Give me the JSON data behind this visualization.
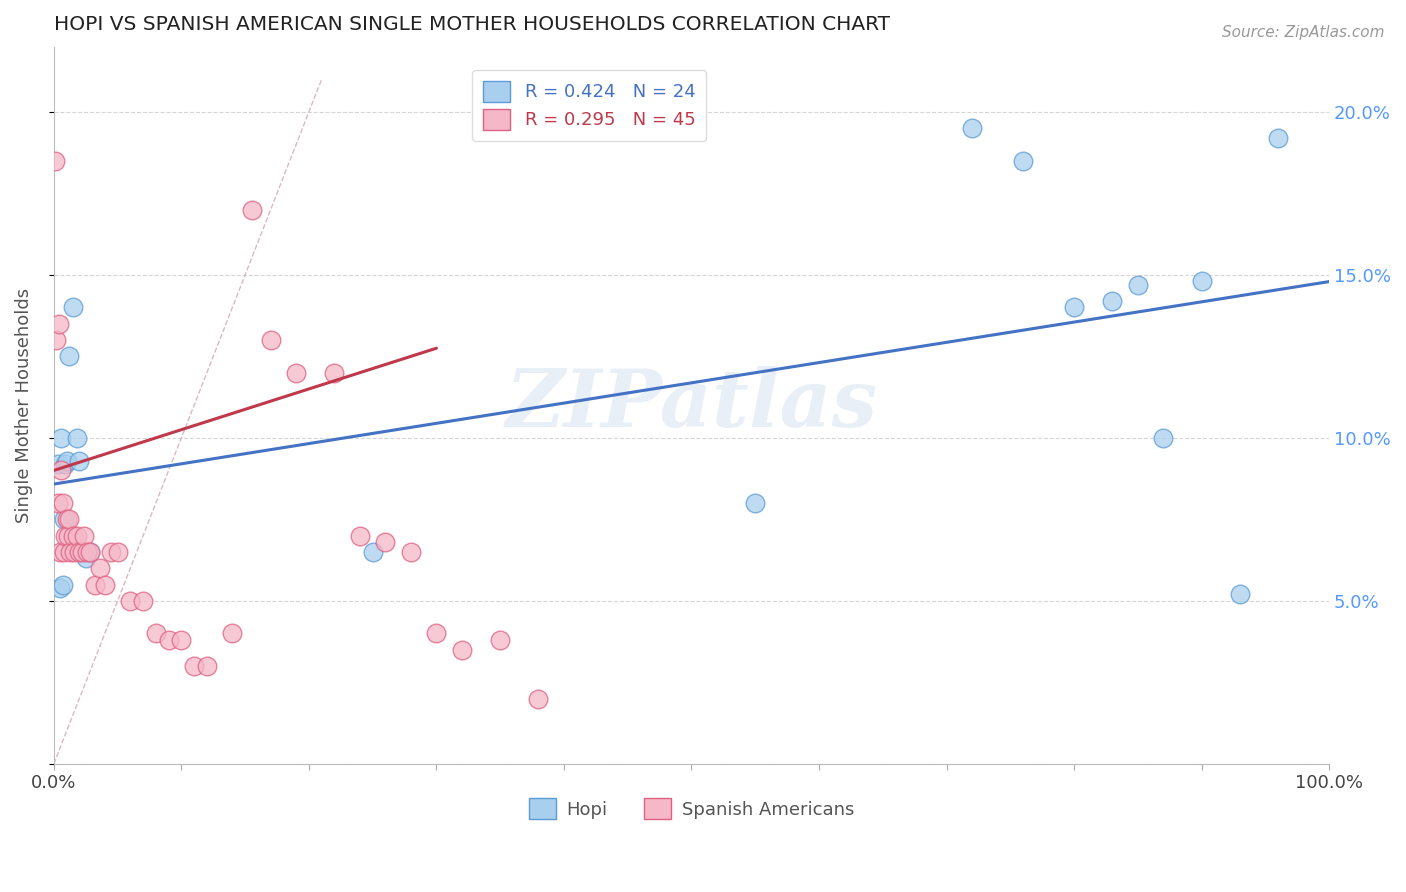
{
  "title": "HOPI VS SPANISH AMERICAN SINGLE MOTHER HOUSEHOLDS CORRELATION CHART",
  "source": "Source: ZipAtlas.com",
  "ylabel": "Single Mother Households",
  "xlim": [
    0,
    1.0
  ],
  "ylim": [
    0.0,
    0.22
  ],
  "xticks": [
    0.0,
    0.1,
    0.2,
    0.3,
    0.4,
    0.5,
    0.6,
    0.7,
    0.8,
    0.9,
    1.0
  ],
  "yticks": [
    0.0,
    0.05,
    0.1,
    0.15,
    0.2
  ],
  "hopi_color": "#A8D0EE",
  "spanish_color": "#F5B8C8",
  "hopi_edge_color": "#5B9BD5",
  "spanish_edge_color": "#E06080",
  "hopi_line_color": "#4472C4",
  "spanish_line_color": "#C0384B",
  "diagonal_color": "#D8B0B8",
  "hopi_R": 0.424,
  "hopi_N": 24,
  "spanish_R": 0.295,
  "spanish_N": 45,
  "watermark": "ZIPatlas",
  "hopi_x": [
    0.003,
    0.005,
    0.006,
    0.007,
    0.008,
    0.009,
    0.01,
    0.012,
    0.015,
    0.018,
    0.02,
    0.025,
    0.028,
    0.25,
    0.55,
    0.72,
    0.76,
    0.8,
    0.83,
    0.85,
    0.87,
    0.9,
    0.93,
    0.96
  ],
  "hopi_y": [
    0.092,
    0.054,
    0.1,
    0.055,
    0.075,
    0.092,
    0.093,
    0.125,
    0.14,
    0.1,
    0.093,
    0.063,
    0.065,
    0.065,
    0.08,
    0.195,
    0.185,
    0.14,
    0.142,
    0.147,
    0.1,
    0.148,
    0.052,
    0.192
  ],
  "spanish_x": [
    0.001,
    0.002,
    0.003,
    0.004,
    0.005,
    0.006,
    0.007,
    0.008,
    0.009,
    0.01,
    0.011,
    0.012,
    0.013,
    0.015,
    0.016,
    0.018,
    0.02,
    0.022,
    0.024,
    0.026,
    0.028,
    0.032,
    0.036,
    0.04,
    0.045,
    0.05,
    0.06,
    0.07,
    0.08,
    0.09,
    0.1,
    0.11,
    0.12,
    0.14,
    0.155,
    0.17,
    0.19,
    0.22,
    0.24,
    0.26,
    0.28,
    0.3,
    0.32,
    0.35,
    0.38
  ],
  "spanish_y": [
    0.185,
    0.13,
    0.08,
    0.135,
    0.065,
    0.09,
    0.08,
    0.065,
    0.07,
    0.075,
    0.07,
    0.075,
    0.065,
    0.07,
    0.065,
    0.07,
    0.065,
    0.065,
    0.07,
    0.065,
    0.065,
    0.055,
    0.06,
    0.055,
    0.065,
    0.065,
    0.05,
    0.05,
    0.04,
    0.038,
    0.038,
    0.03,
    0.03,
    0.04,
    0.17,
    0.13,
    0.12,
    0.12,
    0.07,
    0.068,
    0.065,
    0.04,
    0.035,
    0.038,
    0.02
  ],
  "background_color": "#FFFFFF",
  "grid_color": "#CCCCCC",
  "right_tick_color": "#5599FF"
}
